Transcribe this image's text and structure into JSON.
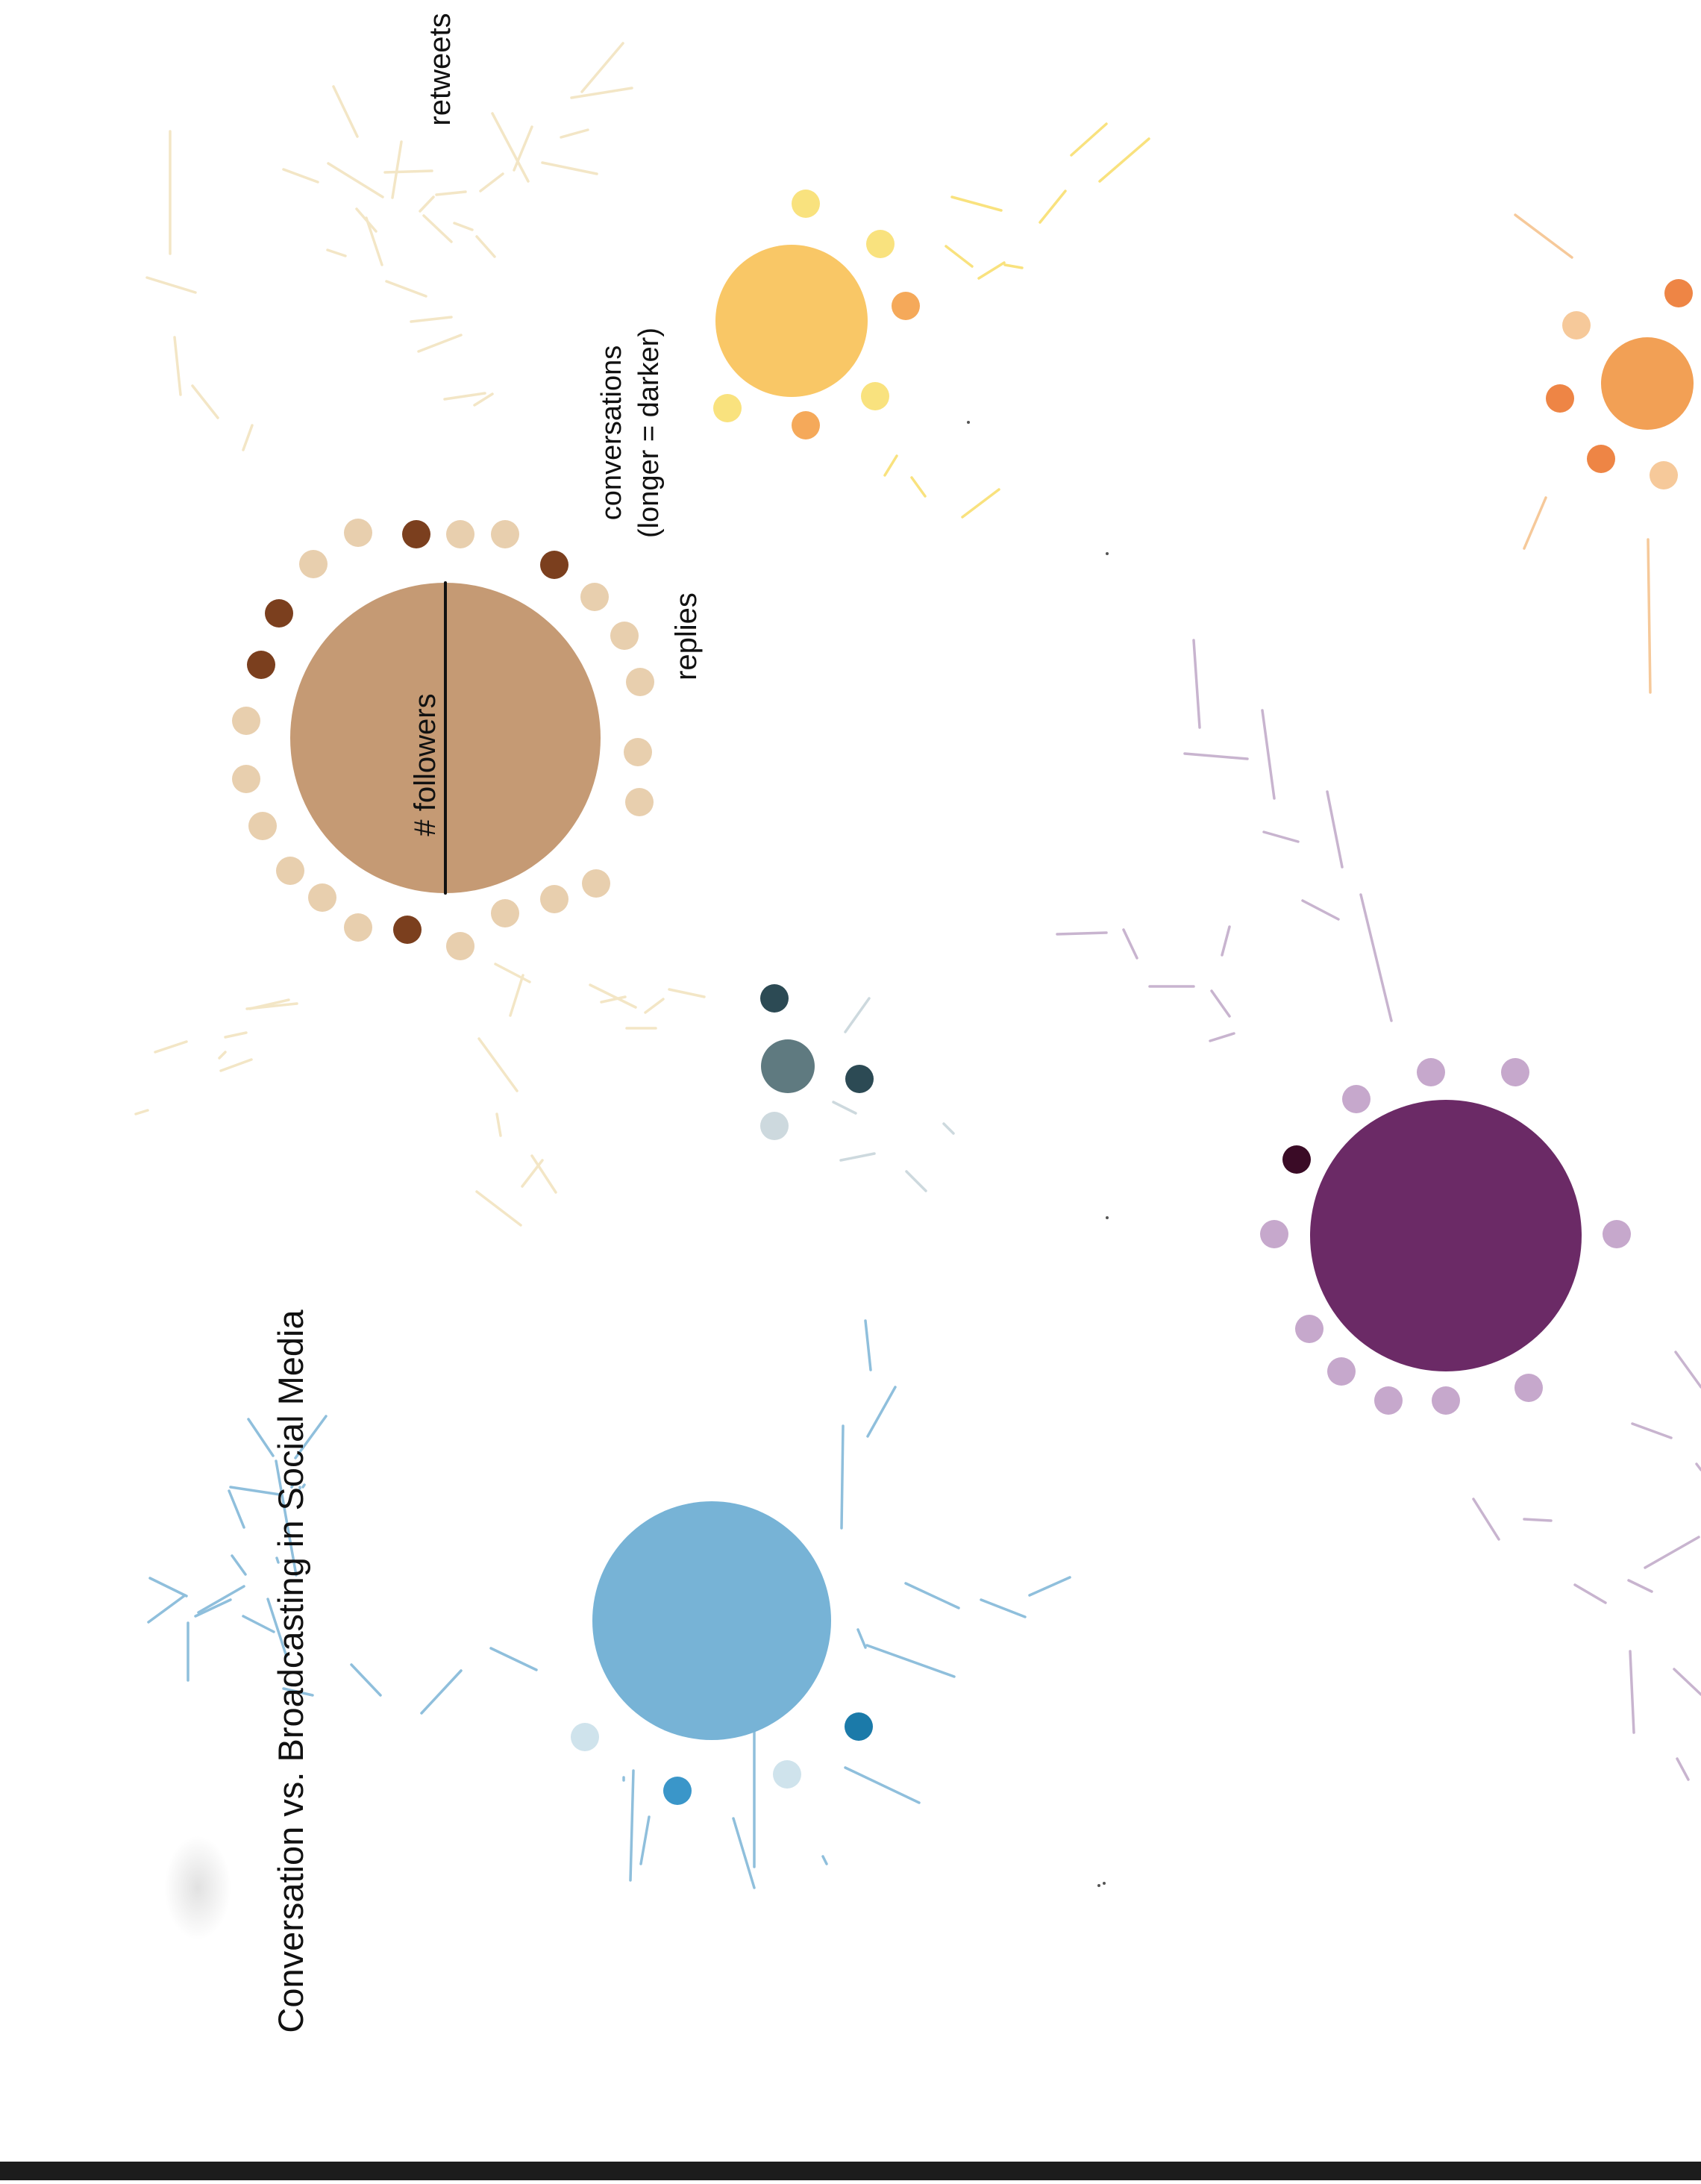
{
  "title": "Conversation vs. Broadcasting in Social Media",
  "legend": {
    "retweets": "retweets",
    "conversations_line1": "conversations",
    "conversations_line2": "(longer = darker)",
    "replies": "replies",
    "followers": "# followers"
  },
  "colors": {
    "brown_main": "#c59a74",
    "brown_dark": "#7b3f1e",
    "brown_light": "#e8cfae",
    "retweet_brown": "#f3e6c6",
    "yellow_main": "#f9c766",
    "yellow_light": "#f9e27e",
    "yellow_orange": "#f5a95a",
    "orange_main": "#f2a055",
    "orange_dark": "#ee8545",
    "orange_light": "#f6c99a",
    "gray_main": "#5f7a80",
    "gray_dark": "#2c4a54",
    "gray_light": "#cdd9de",
    "blue_main": "#77b3d6",
    "blue_dark": "#1b7aa9",
    "blue_mid": "#3a96c9",
    "blue_light": "#cfe3ec",
    "blue_line": "#8fbfdc",
    "purple_main": "#6b2a66",
    "purple_dark": "#3a0b26",
    "purple_light": "#c6a8cc",
    "purple_line": "#c8b4cf"
  }
}
